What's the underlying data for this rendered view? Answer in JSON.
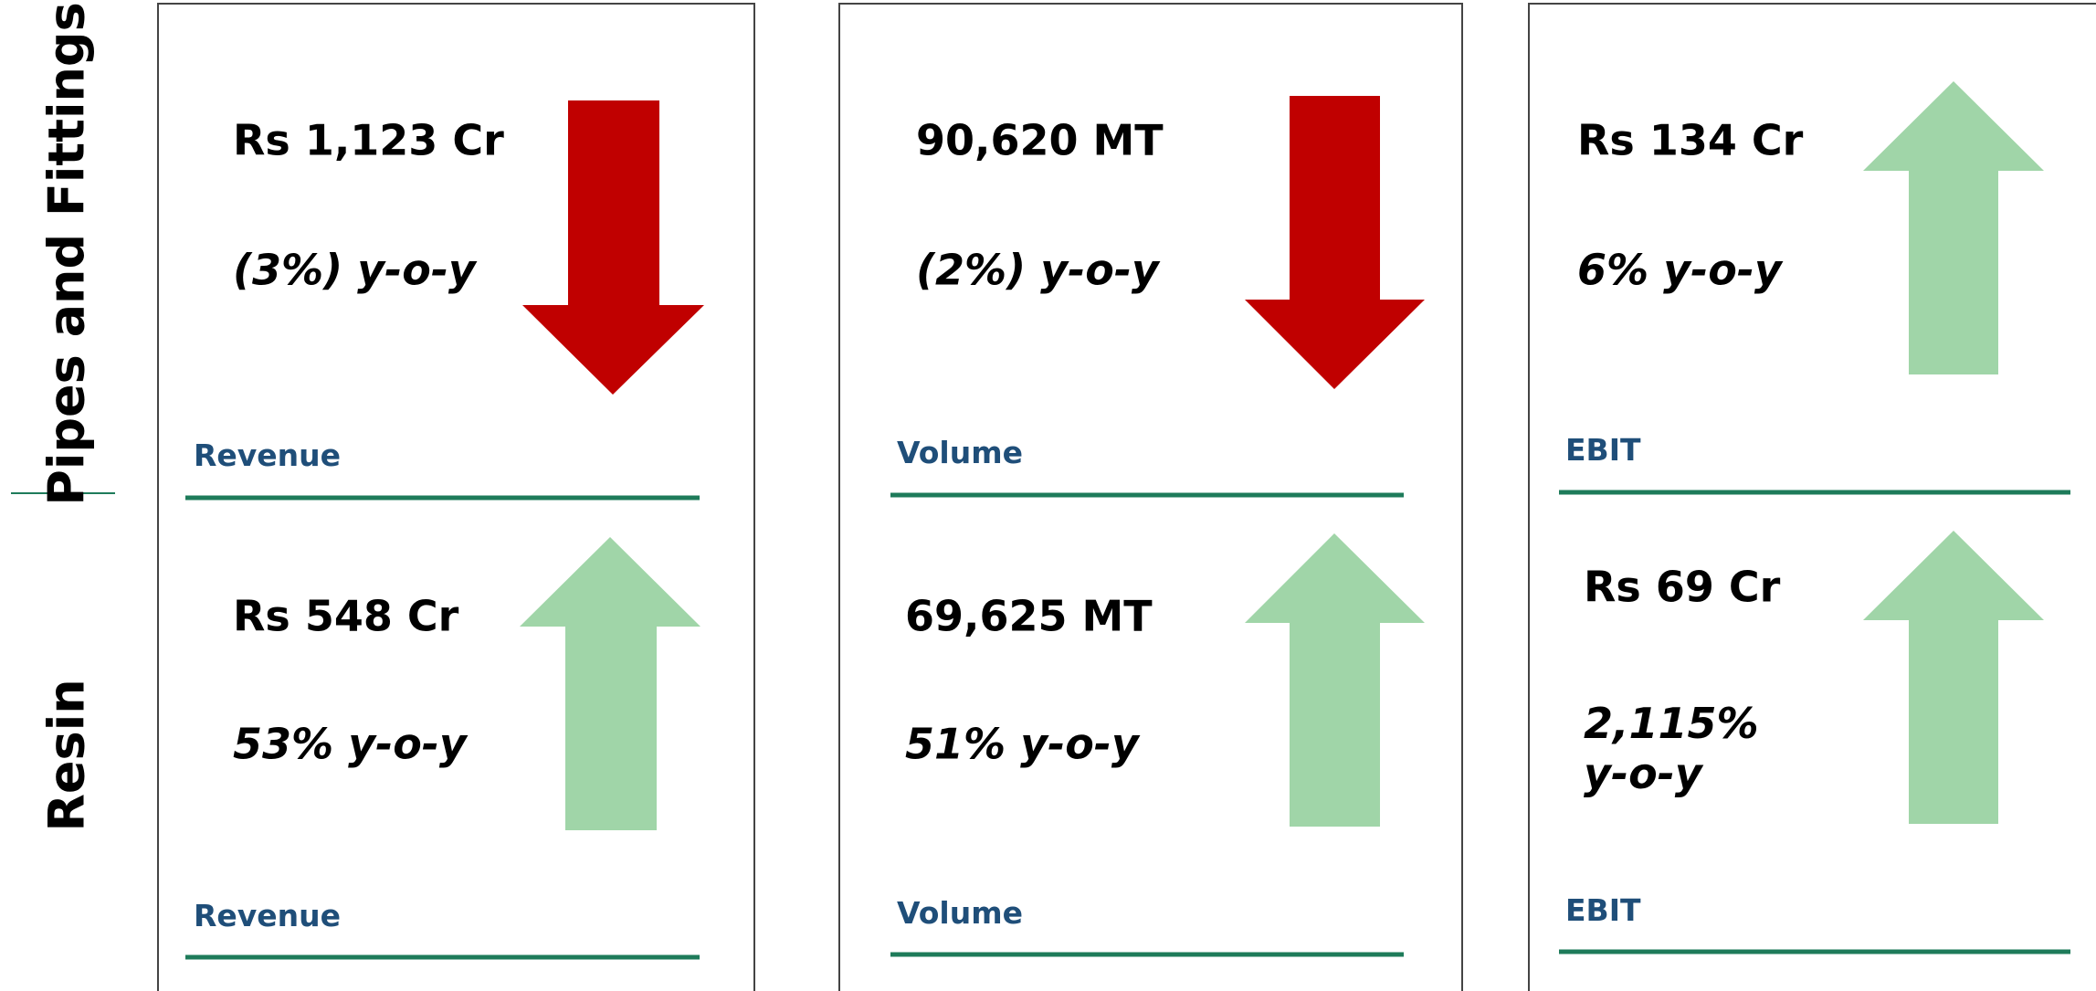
{
  "segments": [
    {
      "name": "Pipes and Fittings",
      "metrics": [
        {
          "value": "Rs 1,123 Cr",
          "change": "(3%) y-o-y",
          "label": "Revenue"
        },
        {
          "value": "90,620 MT",
          "change": "(2%) y-o-y",
          "label": "Volume"
        },
        {
          "value": "Rs 134 Cr",
          "change": "6% y-o-y",
          "label": "EBIT"
        }
      ]
    },
    {
      "name": "Resin",
      "metrics": [
        {
          "value": "Rs 548 Cr",
          "change": "53% y-o-y",
          "label": "Revenue"
        },
        {
          "value": "69,625 MT",
          "change": "51% y-o-y",
          "label": "Volume"
        },
        {
          "value": "Rs 69 Cr",
          "change": "2,115% y-o-y",
          "label": "EBIT"
        }
      ]
    }
  ]
}
